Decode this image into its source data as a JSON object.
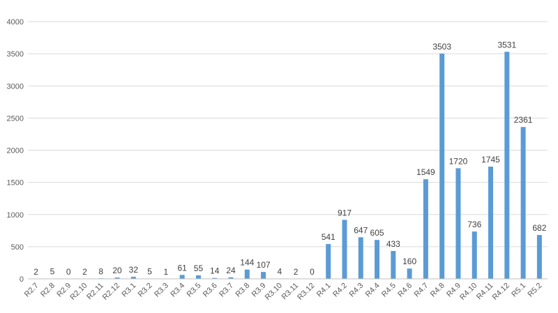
{
  "chart_data": {
    "type": "bar",
    "title": "",
    "xlabel": "",
    "ylabel": "",
    "ylim": [
      0,
      4000
    ],
    "yticks": [
      0,
      500,
      1000,
      1500,
      2000,
      2500,
      3000,
      3500,
      4000
    ],
    "grid": true,
    "legend": "none",
    "bar_color": "#5b9bd5",
    "categories": [
      "R2.7",
      "R2.8",
      "R2.9",
      "R2.10",
      "R2.11",
      "R2.12",
      "R3.1",
      "R3.2",
      "R3.3",
      "R3.4",
      "R3.5",
      "R3.6",
      "R3.7",
      "R3.8",
      "R3.9",
      "R3.10",
      "R3.11",
      "R3.12",
      "R4.1",
      "R4.2",
      "R4.3",
      "R4.4",
      "R4.5",
      "R4.6",
      "R4.7",
      "R4.8",
      "R4.9",
      "R4.10",
      "R4.11",
      "R4.12",
      "R5.1",
      "R5.2"
    ],
    "values": [
      2,
      5,
      0,
      2,
      8,
      20,
      32,
      5,
      1,
      61,
      55,
      14,
      24,
      144,
      107,
      4,
      2,
      0,
      541,
      917,
      647,
      605,
      433,
      160,
      1549,
      3503,
      1720,
      736,
      1745,
      3531,
      2361,
      682
    ]
  }
}
